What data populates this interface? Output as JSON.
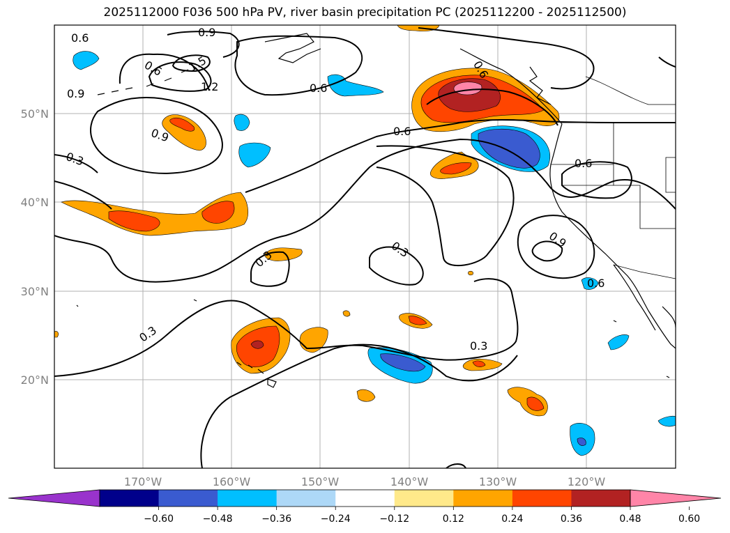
{
  "title": "2025112000 F036 500 hPa PV, river basin precipitation PC (2025112200 - 2025112500)",
  "map": {
    "lon_labels": [
      "170°W",
      "160°W",
      "150°W",
      "140°W",
      "130°W",
      "120°W"
    ],
    "lat_labels": [
      "50°N",
      "40°N",
      "30°N",
      "20°N"
    ],
    "contour_levels": [
      "0.3",
      "0.6",
      "0.9",
      "1.2",
      "1.5"
    ],
    "contour_labels": [
      {
        "text": "0.6"
      },
      {
        "text": "0.9"
      },
      {
        "text": "1.5"
      },
      {
        "text": "1.2"
      },
      {
        "text": "0.6"
      },
      {
        "text": "0.9"
      },
      {
        "text": "0.9"
      },
      {
        "text": "0.3"
      },
      {
        "text": "0.6"
      },
      {
        "text": "0.6"
      },
      {
        "text": "0.6"
      },
      {
        "text": "0.6"
      },
      {
        "text": "0.9"
      },
      {
        "text": "0.3"
      },
      {
        "text": "0.3"
      },
      {
        "text": "0.3"
      },
      {
        "text": "0.3"
      },
      {
        "text": "0.6"
      }
    ]
  },
  "colorbar": {
    "ticks": [
      "−0.60",
      "−0.48",
      "−0.36",
      "−0.24",
      "−0.12",
      "0.12",
      "0.24",
      "0.36",
      "0.48",
      "0.60"
    ],
    "colors": [
      "#9933cc",
      "#00008b",
      "#3a5bd0",
      "#00bfff",
      "#add8f7",
      "#ffffff",
      "#ffe98a",
      "#ffa500",
      "#ff4500",
      "#b22222",
      "#ff85a8"
    ],
    "extend": "both"
  }
}
